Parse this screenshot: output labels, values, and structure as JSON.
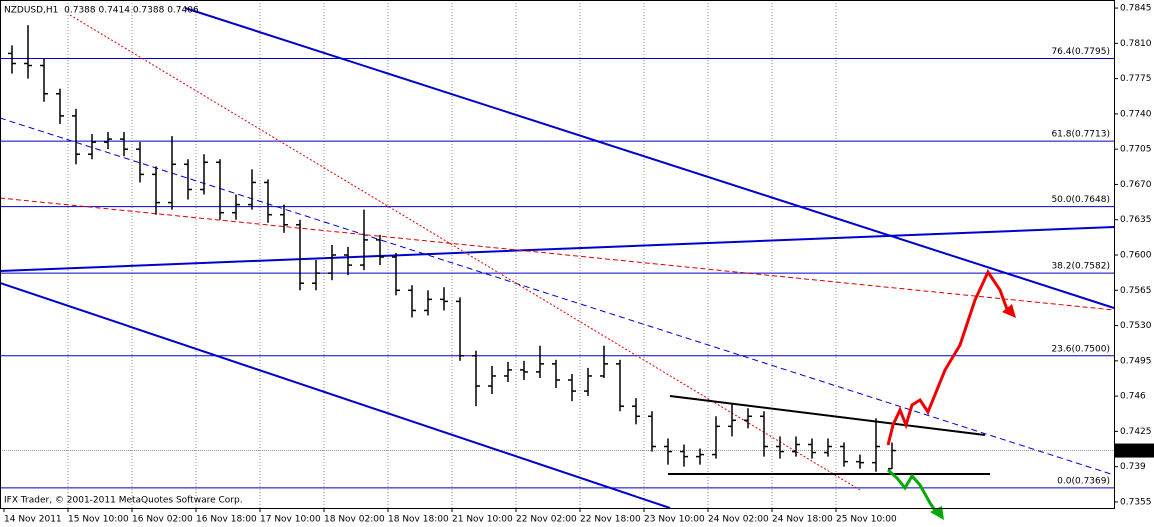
{
  "chart_data": {
    "type": "ohlc",
    "header": "NZDUSD,H1  0.7388 0.7414 0.7388 0.7406",
    "footer": "IFX Trader, © 2001-2011 MetaQuotes Software Corp.",
    "color": "#000000",
    "open": [
      0.78,
      0.779,
      0.7788,
      0.776,
      0.7738,
      0.77,
      0.7712,
      0.7715,
      0.7705,
      0.768,
      0.7652,
      0.769,
      0.7665,
      0.7692,
      0.7642,
      0.765,
      0.7672,
      0.764,
      0.763,
      0.7572,
      0.7582,
      0.76,
      0.759,
      0.7615,
      0.7598,
      0.7565,
      0.7545,
      0.7556,
      0.7554,
      0.75,
      0.747,
      0.748,
      0.7486,
      0.7484,
      0.7492,
      0.7476,
      0.7465,
      0.748,
      0.7492,
      0.745,
      0.744,
      0.741,
      0.7405,
      0.74,
      0.7402,
      0.743,
      0.7436,
      0.744,
      0.741,
      0.7405,
      0.7412,
      0.7404,
      0.741,
      0.7395,
      0.7394,
      0.7388
    ],
    "high": [
      0.7808,
      0.7828,
      0.7795,
      0.7765,
      0.7745,
      0.772,
      0.7722,
      0.7722,
      0.7712,
      0.7688,
      0.7718,
      0.7695,
      0.77,
      0.7695,
      0.766,
      0.7685,
      0.7675,
      0.765,
      0.7635,
      0.7595,
      0.761,
      0.7608,
      0.7645,
      0.762,
      0.7602,
      0.757,
      0.7565,
      0.7568,
      0.7558,
      0.7505,
      0.749,
      0.7494,
      0.7495,
      0.751,
      0.7496,
      0.7482,
      0.7488,
      0.751,
      0.7496,
      0.7458,
      0.7445,
      0.7418,
      0.7412,
      0.7408,
      0.744,
      0.7452,
      0.7448,
      0.7445,
      0.742,
      0.742,
      0.7418,
      0.7418,
      0.7414,
      0.7402,
      0.7438,
      0.7414
    ],
    "low": [
      0.778,
      0.7775,
      0.7752,
      0.773,
      0.769,
      0.7695,
      0.7705,
      0.7698,
      0.7672,
      0.764,
      0.7645,
      0.7655,
      0.766,
      0.7635,
      0.7635,
      0.7645,
      0.7632,
      0.7622,
      0.7565,
      0.7565,
      0.7575,
      0.758,
      0.7585,
      0.759,
      0.756,
      0.7538,
      0.754,
      0.7545,
      0.7495,
      0.745,
      0.7462,
      0.7474,
      0.7476,
      0.7478,
      0.7468,
      0.7455,
      0.746,
      0.7478,
      0.7445,
      0.7432,
      0.7405,
      0.7392,
      0.739,
      0.7392,
      0.7398,
      0.742,
      0.7428,
      0.74,
      0.7398,
      0.74,
      0.7398,
      0.74,
      0.739,
      0.7388,
      0.7385,
      0.7388
    ],
    "close": [
      0.779,
      0.7788,
      0.776,
      0.7738,
      0.77,
      0.7712,
      0.7715,
      0.7705,
      0.768,
      0.7652,
      0.769,
      0.7665,
      0.7692,
      0.7642,
      0.765,
      0.7672,
      0.764,
      0.763,
      0.7572,
      0.7582,
      0.76,
      0.759,
      0.7615,
      0.7598,
      0.7565,
      0.7545,
      0.7556,
      0.7554,
      0.75,
      0.747,
      0.748,
      0.7486,
      0.7484,
      0.7492,
      0.7476,
      0.7465,
      0.748,
      0.7492,
      0.745,
      0.744,
      0.741,
      0.7405,
      0.74,
      0.7402,
      0.743,
      0.7436,
      0.744,
      0.741,
      0.7405,
      0.7412,
      0.7404,
      0.741,
      0.7395,
      0.7394,
      0.741,
      0.7406
    ],
    "xtick_labels": [
      "14 Nov 2011",
      "15 Nov 10:00",
      "16 Nov 02:00",
      "16 Nov 18:00",
      "17 Nov 10:00",
      "18 Nov 02:00",
      "18 Nov 18:00",
      "21 Nov 10:00",
      "22 Nov 02:00",
      "22 Nov 18:00",
      "23 Nov 10:00",
      "24 Nov 02:00",
      "24 Nov 18:00",
      "25 Nov 10:00"
    ],
    "ylim": [
      0.7349,
      0.7853
    ],
    "yticks": [
      0.7845,
      {
        "value": 0.781,
        "label": "0.7810"
      },
      0.7775,
      {
        "value": 0.774,
        "label": "0.7740"
      },
      0.7705,
      {
        "value": 0.767,
        "label": "0.7670"
      },
      0.7635,
      {
        "value": 0.76,
        "label": "0.7600"
      },
      0.7565,
      {
        "value": 0.753,
        "label": "0.7530"
      },
      0.7495,
      0.746,
      0.7425,
      0.739,
      0.7355
    ],
    "levels": [
      {
        "label": "76.4(0.7795)",
        "value": 0.7795
      },
      {
        "label": "61.8(0.7713)",
        "value": 0.7713
      },
      {
        "label": "50.0(0.7648)",
        "value": 0.7648
      },
      {
        "label": "38.2(0.7582)",
        "value": 0.7582
      },
      {
        "label": "23.6(0.7500)",
        "value": 0.75
      },
      {
        "label": "0.0(0.7369)",
        "value": 0.7369
      }
    ],
    "last_price": 0.7406,
    "grid": true
  }
}
